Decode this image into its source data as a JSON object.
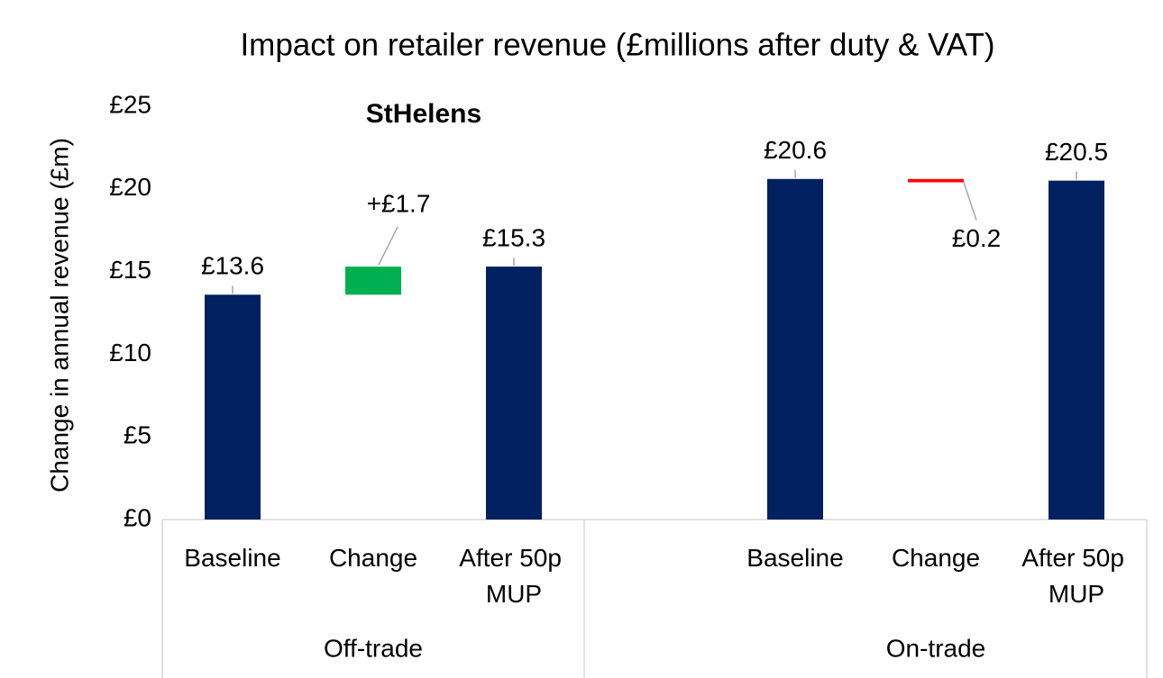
{
  "chart_data": {
    "type": "waterfall",
    "title": "Impact on retailer revenue (£millions after duty & VAT)",
    "subtitle": "StHelens",
    "y_axis_label": "Change in annual revenue (£m)",
    "ylim": [
      0,
      25
    ],
    "yticks": [
      {
        "value": 0,
        "label": "£0"
      },
      {
        "value": 5,
        "label": "£5"
      },
      {
        "value": 10,
        "label": "£10"
      },
      {
        "value": 15,
        "label": "£15"
      },
      {
        "value": 20,
        "label": "£20"
      },
      {
        "value": 25,
        "label": "£25"
      }
    ],
    "color": "#002060",
    "increase_color": "#00b050",
    "decrease_color": "#ff0000",
    "groups": [
      {
        "name": "Off-trade",
        "categories": [
          "Baseline",
          "Change",
          "After 50p MUP"
        ],
        "values": [
          13.6,
          1.7,
          15.3
        ],
        "value_labels": [
          "£13.6",
          "+£1.7",
          "£15.3"
        ]
      },
      {
        "name": "On-trade",
        "categories": [
          null,
          "Baseline",
          "Change",
          "After 50p MUP"
        ],
        "values": [
          null,
          20.6,
          -0.2,
          20.5
        ],
        "value_labels": [
          null,
          "£20.6",
          "£0.2",
          "£20.5"
        ]
      }
    ]
  }
}
